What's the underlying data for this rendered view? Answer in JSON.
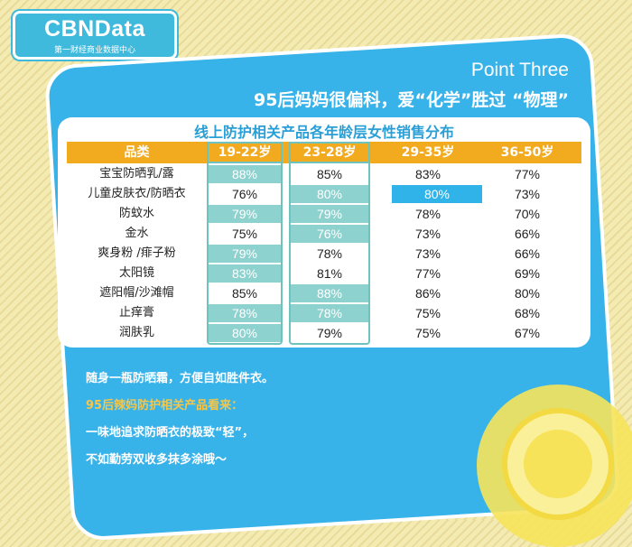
{
  "logo": {
    "name": "CBNData",
    "tagline": "第一财经商业数据中心"
  },
  "header": {
    "point_label": "Point Three",
    "headline": "95后妈妈很偏科，爱“化学”胜过 “物理”"
  },
  "table": {
    "title": "线上防护相关产品各年龄层女性销售分布",
    "headers": [
      "品类",
      "19-22岁",
      "23-28岁",
      "29-35岁",
      "36-50岁"
    ],
    "rows": [
      {
        "category": "宝宝防晒乳/露",
        "values": [
          "88%",
          "85%",
          "83%",
          "77%"
        ]
      },
      {
        "category": "儿童皮肤衣/防晒衣",
        "values": [
          "76%",
          "80%",
          "80%",
          "73%"
        ]
      },
      {
        "category": "防蚊水",
        "values": [
          "79%",
          "79%",
          "78%",
          "70%"
        ]
      },
      {
        "category": "金水",
        "values": [
          "75%",
          "76%",
          "73%",
          "66%"
        ]
      },
      {
        "category": "爽身粉 /痱子粉",
        "values": [
          "79%",
          "78%",
          "73%",
          "66%"
        ]
      },
      {
        "category": "太阳镜",
        "values": [
          "83%",
          "81%",
          "77%",
          "69%"
        ]
      },
      {
        "category": "遮阳帽/沙滩帽",
        "values": [
          "85%",
          "88%",
          "86%",
          "80%"
        ]
      },
      {
        "category": "止痒膏",
        "values": [
          "78%",
          "78%",
          "75%",
          "68%"
        ]
      },
      {
        "category": "润肤乳",
        "values": [
          "80%",
          "79%",
          "75%",
          "67%"
        ]
      }
    ]
  },
  "notes": {
    "line1": "随身一瓶防晒霜，方便自如胜件衣。",
    "line2": "95后辣妈防护相关产品看来：",
    "line3": "一味地追求防晒衣的极致“轻”，",
    "line4": "不如勤劳双收多抹多涂哦～"
  },
  "colors": {
    "panel_blue": "#38b3ea",
    "header_orange": "#f2aa1f",
    "highlight_teal": "#8ed2cf",
    "accent_yellow": "#f6c64a"
  }
}
